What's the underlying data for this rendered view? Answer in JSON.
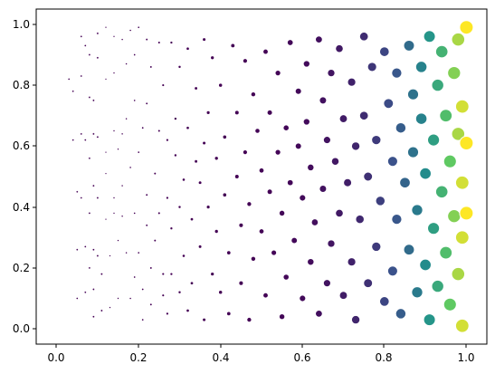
{
  "chart_data": {
    "type": "scatter",
    "title": "",
    "xlabel": "",
    "ylabel": "",
    "xlim": [
      -0.05,
      1.05
    ],
    "ylim": [
      -0.05,
      1.05
    ],
    "x_ticks": [
      0.0,
      0.2,
      0.4,
      0.6,
      0.8,
      1.0
    ],
    "x_tick_labels": [
      "0.0",
      "0.2",
      "0.4",
      "0.6",
      "0.8",
      "1.0"
    ],
    "y_ticks": [
      0.0,
      0.2,
      0.4,
      0.6,
      0.8,
      1.0
    ],
    "y_tick_labels": [
      "0.0",
      "0.2",
      "0.4",
      "0.6",
      "0.8",
      "1.0"
    ],
    "grid": false,
    "legend": "none",
    "color_map": "viridis",
    "marker_edge_color": "#ffffff",
    "note_size_and_color": "marker size and color both increase with x",
    "points": [
      [
        0.03,
        0.82
      ],
      [
        0.04,
        0.78
      ],
      [
        0.04,
        0.62
      ],
      [
        0.05,
        0.45
      ],
      [
        0.05,
        0.26
      ],
      [
        0.05,
        0.1
      ],
      [
        0.06,
        0.83
      ],
      [
        0.06,
        0.96
      ],
      [
        0.06,
        0.64
      ],
      [
        0.06,
        0.43
      ],
      [
        0.07,
        0.93
      ],
      [
        0.07,
        0.62
      ],
      [
        0.07,
        0.27
      ],
      [
        0.07,
        0.12
      ],
      [
        0.08,
        0.76
      ],
      [
        0.08,
        0.9
      ],
      [
        0.08,
        0.56
      ],
      [
        0.08,
        0.38
      ],
      [
        0.08,
        0.2
      ],
      [
        0.09,
        0.04
      ],
      [
        0.09,
        0.75
      ],
      [
        0.09,
        0.64
      ],
      [
        0.09,
        0.47
      ],
      [
        0.09,
        0.26
      ],
      [
        0.09,
        0.13
      ],
      [
        0.1,
        0.97
      ],
      [
        0.1,
        0.89
      ],
      [
        0.1,
        0.63
      ],
      [
        0.1,
        0.43
      ],
      [
        0.1,
        0.24
      ],
      [
        0.11,
        0.18
      ],
      [
        0.11,
        0.06
      ],
      [
        0.12,
        0.99
      ],
      [
        0.12,
        0.82
      ],
      [
        0.12,
        0.58
      ],
      [
        0.12,
        0.51
      ],
      [
        0.12,
        0.36
      ],
      [
        0.13,
        0.24
      ],
      [
        0.13,
        0.07
      ],
      [
        0.14,
        0.96
      ],
      [
        0.14,
        0.84
      ],
      [
        0.14,
        0.65
      ],
      [
        0.14,
        0.43
      ],
      [
        0.14,
        0.38
      ],
      [
        0.15,
        0.59
      ],
      [
        0.15,
        0.29
      ],
      [
        0.15,
        0.1
      ],
      [
        0.16,
        0.95
      ],
      [
        0.16,
        0.64
      ],
      [
        0.16,
        0.47
      ],
      [
        0.16,
        0.37
      ],
      [
        0.17,
        0.87
      ],
      [
        0.17,
        0.69
      ],
      [
        0.17,
        0.25
      ],
      [
        0.18,
        0.1
      ],
      [
        0.18,
        0.98
      ],
      [
        0.18,
        0.53
      ],
      [
        0.19,
        0.9
      ],
      [
        0.19,
        0.75
      ],
      [
        0.19,
        0.38
      ],
      [
        0.19,
        0.17
      ],
      [
        0.2,
        0.99
      ],
      [
        0.2,
        0.58
      ],
      [
        0.2,
        0.25
      ],
      [
        0.21,
        0.13
      ],
      [
        0.21,
        0.03
      ],
      [
        0.21,
        0.66
      ],
      [
        0.22,
        0.95
      ],
      [
        0.22,
        0.74
      ],
      [
        0.22,
        0.44
      ],
      [
        0.22,
        0.34
      ],
      [
        0.23,
        0.2
      ],
      [
        0.23,
        0.08
      ],
      [
        0.23,
        0.86
      ],
      [
        0.24,
        0.51
      ],
      [
        0.24,
        0.29
      ],
      [
        0.25,
        0.94
      ],
      [
        0.25,
        0.65
      ],
      [
        0.25,
        0.38
      ],
      [
        0.26,
        0.11
      ],
      [
        0.26,
        0.8
      ],
      [
        0.26,
        0.18
      ],
      [
        0.27,
        0.62
      ],
      [
        0.27,
        0.43
      ],
      [
        0.27,
        0.05
      ],
      [
        0.28,
        0.94
      ],
      [
        0.28,
        0.33
      ],
      [
        0.28,
        0.18
      ],
      [
        0.29,
        0.57
      ],
      [
        0.29,
        0.69
      ],
      [
        0.3,
        0.12
      ],
      [
        0.3,
        0.86
      ],
      [
        0.3,
        0.4
      ],
      [
        0.31,
        0.49
      ],
      [
        0.31,
        0.24
      ],
      [
        0.32,
        0.92
      ],
      [
        0.32,
        0.66
      ],
      [
        0.32,
        0.06
      ],
      [
        0.33,
        0.36
      ],
      [
        0.33,
        0.15
      ],
      [
        0.34,
        0.79
      ],
      [
        0.34,
        0.55
      ],
      [
        0.35,
        0.48
      ],
      [
        0.35,
        0.27
      ],
      [
        0.36,
        0.95
      ],
      [
        0.36,
        0.61
      ],
      [
        0.36,
        0.03
      ],
      [
        0.37,
        0.71
      ],
      [
        0.37,
        0.4
      ],
      [
        0.38,
        0.18
      ],
      [
        0.38,
        0.89
      ],
      [
        0.39,
        0.56
      ],
      [
        0.39,
        0.32
      ],
      [
        0.4,
        0.12
      ],
      [
        0.4,
        0.8
      ],
      [
        0.41,
        0.63
      ],
      [
        0.41,
        0.44
      ],
      [
        0.42,
        0.25
      ],
      [
        0.42,
        0.05
      ],
      [
        0.43,
        0.93
      ],
      [
        0.44,
        0.71
      ],
      [
        0.44,
        0.5
      ],
      [
        0.45,
        0.34
      ],
      [
        0.45,
        0.15
      ],
      [
        0.46,
        0.88
      ],
      [
        0.46,
        0.58
      ],
      [
        0.47,
        0.41
      ],
      [
        0.47,
        0.03
      ],
      [
        0.48,
        0.77
      ],
      [
        0.48,
        0.23
      ],
      [
        0.49,
        0.65
      ],
      [
        0.5,
        0.52
      ],
      [
        0.5,
        0.32
      ],
      [
        0.51,
        0.91
      ],
      [
        0.51,
        0.11
      ],
      [
        0.52,
        0.71
      ],
      [
        0.52,
        0.45
      ],
      [
        0.53,
        0.25
      ],
      [
        0.54,
        0.84
      ],
      [
        0.54,
        0.58
      ],
      [
        0.55,
        0.38
      ],
      [
        0.55,
        0.04
      ],
      [
        0.56,
        0.66
      ],
      [
        0.56,
        0.17
      ],
      [
        0.57,
        0.94
      ],
      [
        0.57,
        0.48
      ],
      [
        0.58,
        0.29
      ],
      [
        0.59,
        0.78
      ],
      [
        0.59,
        0.6
      ],
      [
        0.6,
        0.1
      ],
      [
        0.6,
        0.43
      ],
      [
        0.61,
        0.87
      ],
      [
        0.61,
        0.68
      ],
      [
        0.62,
        0.22
      ],
      [
        0.62,
        0.53
      ],
      [
        0.63,
        0.35
      ],
      [
        0.64,
        0.95
      ],
      [
        0.64,
        0.05
      ],
      [
        0.65,
        0.75
      ],
      [
        0.65,
        0.46
      ],
      [
        0.66,
        0.15
      ],
      [
        0.66,
        0.62
      ],
      [
        0.67,
        0.84
      ],
      [
        0.67,
        0.28
      ],
      [
        0.68,
        0.55
      ],
      [
        0.69,
        0.38
      ],
      [
        0.69,
        0.92
      ],
      [
        0.7,
        0.11
      ],
      [
        0.7,
        0.69
      ],
      [
        0.71,
        0.48
      ],
      [
        0.72,
        0.22
      ],
      [
        0.72,
        0.81
      ],
      [
        0.73,
        0.6
      ],
      [
        0.73,
        0.03
      ],
      [
        0.74,
        0.36
      ],
      [
        0.75,
        0.96
      ],
      [
        0.75,
        0.7
      ],
      [
        0.76,
        0.15
      ],
      [
        0.76,
        0.5
      ],
      [
        0.77,
        0.86
      ],
      [
        0.78,
        0.27
      ],
      [
        0.78,
        0.62
      ],
      [
        0.79,
        0.42
      ],
      [
        0.8,
        0.09
      ],
      [
        0.8,
        0.91
      ],
      [
        0.81,
        0.74
      ],
      [
        0.82,
        0.55
      ],
      [
        0.82,
        0.19
      ],
      [
        0.83,
        0.84
      ],
      [
        0.83,
        0.36
      ],
      [
        0.84,
        0.66
      ],
      [
        0.84,
        0.05
      ],
      [
        0.85,
        0.48
      ],
      [
        0.86,
        0.93
      ],
      [
        0.86,
        0.26
      ],
      [
        0.87,
        0.77
      ],
      [
        0.87,
        0.58
      ],
      [
        0.88,
        0.12
      ],
      [
        0.88,
        0.39
      ],
      [
        0.89,
        0.86
      ],
      [
        0.89,
        0.69
      ],
      [
        0.9,
        0.21
      ],
      [
        0.9,
        0.51
      ],
      [
        0.91,
        0.96
      ],
      [
        0.91,
        0.03
      ],
      [
        0.92,
        0.62
      ],
      [
        0.92,
        0.33
      ],
      [
        0.93,
        0.8
      ],
      [
        0.93,
        0.14
      ],
      [
        0.94,
        0.45
      ],
      [
        0.94,
        0.91
      ],
      [
        0.95,
        0.7
      ],
      [
        0.95,
        0.25
      ],
      [
        0.96,
        0.55
      ],
      [
        0.96,
        0.08
      ],
      [
        0.97,
        0.84
      ],
      [
        0.97,
        0.37
      ],
      [
        0.98,
        0.64
      ],
      [
        0.98,
        0.18
      ],
      [
        0.98,
        0.95
      ],
      [
        0.99,
        0.48
      ],
      [
        0.99,
        0.73
      ],
      [
        0.99,
        0.3
      ],
      [
        0.99,
        0.01
      ],
      [
        1.0,
        0.61
      ],
      [
        1.0,
        0.38
      ],
      [
        1.0,
        0.99
      ]
    ]
  }
}
